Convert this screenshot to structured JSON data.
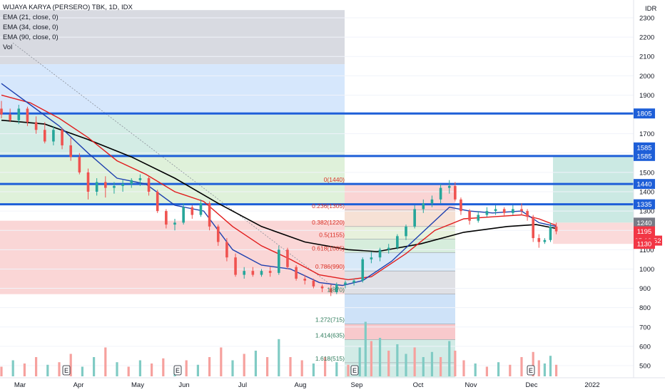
{
  "header": {
    "symbol": "WIJAYA KARYA (PERSERO) TBK, 1D, IDX",
    "indicators": [
      "EMA (21, close, 0)",
      "EMA (34, close, 0)",
      "EMA (90, close, 0)",
      "Vol"
    ]
  },
  "colors": {
    "up": "#26a69a",
    "down": "#ef5350",
    "vol_up": "#80cbc4",
    "vol_down": "#f6a19e",
    "ema21": "#1e40af",
    "ema34": "#e11d1d",
    "ema90": "#000000",
    "hline": "#1e5fd8",
    "tag_red": "#f23645",
    "tag_gray": "#787b86"
  },
  "chart_data": {
    "type": "candlestick",
    "currency_label": "IDR",
    "y_ticks": [
      500,
      600,
      700,
      800,
      900,
      1000,
      1100,
      1200,
      1300,
      1400,
      1500,
      1600,
      1700,
      1800,
      1900,
      2000,
      2100,
      2200,
      2300
    ],
    "y_range": [
      445,
      2340
    ],
    "x_labels": [
      "Mar",
      "Apr",
      "May",
      "Jun",
      "Jul",
      "Aug",
      "Sep",
      "Oct",
      "Nov",
      "Dec",
      "2022"
    ],
    "horizontal_levels": [
      {
        "label": "1805",
        "value": 1805
      },
      {
        "label": "1585",
        "value": 1585
      },
      {
        "label": "1440",
        "value": 1440
      },
      {
        "label": "1335",
        "value": 1335
      }
    ],
    "price_tags": [
      {
        "label": "1585",
        "value": 1585,
        "kind": "blue",
        "offset": -12
      },
      {
        "label": "1240",
        "value": 1240,
        "kind": "gray"
      },
      {
        "label": "1195",
        "value": 1195,
        "kind": "red"
      },
      {
        "label": "05:19:52",
        "value": 1195,
        "kind": "red",
        "offset": 13
      },
      {
        "label": "1130",
        "value": 1130,
        "kind": "red"
      }
    ],
    "fib_retracement": [
      {
        "label": "0(1440)",
        "value": 1440
      },
      {
        "label": "0.236(1305)",
        "value": 1305
      },
      {
        "label": "0.382(1220)",
        "value": 1220
      },
      {
        "label": "0.5(1155)",
        "value": 1155
      },
      {
        "label": "0.618(1085)",
        "value": 1085
      },
      {
        "label": "0.786(990)",
        "value": 990
      },
      {
        "label": "1(870)",
        "value": 870
      },
      {
        "label": "1.272(715)",
        "value": 715
      },
      {
        "label": "1.414(635)",
        "value": 635
      },
      {
        "label": "1.618(515)",
        "value": 515
      }
    ],
    "ohlc_points": [
      {
        "i": 0,
        "o": 1830,
        "h": 1870,
        "l": 1780,
        "c": 1800
      },
      {
        "i": 3,
        "o": 1800,
        "h": 1830,
        "l": 1760,
        "c": 1770
      },
      {
        "i": 6,
        "o": 1770,
        "h": 1850,
        "l": 1750,
        "c": 1830
      },
      {
        "i": 9,
        "o": 1830,
        "h": 1840,
        "l": 1740,
        "c": 1760
      },
      {
        "i": 12,
        "o": 1760,
        "h": 1790,
        "l": 1700,
        "c": 1720
      },
      {
        "i": 15,
        "o": 1720,
        "h": 1760,
        "l": 1650,
        "c": 1660
      },
      {
        "i": 18,
        "o": 1660,
        "h": 1740,
        "l": 1640,
        "c": 1720
      },
      {
        "i": 21,
        "o": 1720,
        "h": 1730,
        "l": 1620,
        "c": 1640
      },
      {
        "i": 24,
        "o": 1640,
        "h": 1680,
        "l": 1560,
        "c": 1580
      },
      {
        "i": 27,
        "o": 1580,
        "h": 1600,
        "l": 1490,
        "c": 1500
      },
      {
        "i": 30,
        "o": 1500,
        "h": 1520,
        "l": 1360,
        "c": 1400
      },
      {
        "i": 33,
        "o": 1400,
        "h": 1470,
        "l": 1380,
        "c": 1450
      },
      {
        "i": 36,
        "o": 1450,
        "h": 1480,
        "l": 1370,
        "c": 1420
      },
      {
        "i": 39,
        "o": 1420,
        "h": 1450,
        "l": 1390,
        "c": 1430
      },
      {
        "i": 42,
        "o": 1430,
        "h": 1460,
        "l": 1400,
        "c": 1440
      },
      {
        "i": 45,
        "o": 1440,
        "h": 1470,
        "l": 1420,
        "c": 1460
      },
      {
        "i": 48,
        "o": 1460,
        "h": 1490,
        "l": 1430,
        "c": 1470
      },
      {
        "i": 51,
        "o": 1470,
        "h": 1480,
        "l": 1380,
        "c": 1400
      },
      {
        "i": 54,
        "o": 1400,
        "h": 1410,
        "l": 1290,
        "c": 1300
      },
      {
        "i": 57,
        "o": 1300,
        "h": 1310,
        "l": 1210,
        "c": 1230
      },
      {
        "i": 60,
        "o": 1230,
        "h": 1260,
        "l": 1200,
        "c": 1240
      },
      {
        "i": 63,
        "o": 1240,
        "h": 1340,
        "l": 1230,
        "c": 1320
      },
      {
        "i": 66,
        "o": 1320,
        "h": 1330,
        "l": 1260,
        "c": 1280
      },
      {
        "i": 69,
        "o": 1280,
        "h": 1360,
        "l": 1270,
        "c": 1340
      },
      {
        "i": 72,
        "o": 1340,
        "h": 1350,
        "l": 1200,
        "c": 1220
      },
      {
        "i": 75,
        "o": 1220,
        "h": 1230,
        "l": 1120,
        "c": 1140
      },
      {
        "i": 78,
        "o": 1140,
        "h": 1160,
        "l": 1040,
        "c": 1060
      },
      {
        "i": 81,
        "o": 1060,
        "h": 1080,
        "l": 960,
        "c": 970
      },
      {
        "i": 84,
        "o": 970,
        "h": 1010,
        "l": 950,
        "c": 990
      },
      {
        "i": 87,
        "o": 990,
        "h": 1010,
        "l": 960,
        "c": 970
      },
      {
        "i": 90,
        "o": 970,
        "h": 1000,
        "l": 960,
        "c": 990
      },
      {
        "i": 93,
        "o": 990,
        "h": 1010,
        "l": 960,
        "c": 980
      },
      {
        "i": 96,
        "o": 980,
        "h": 1120,
        "l": 970,
        "c": 1100
      },
      {
        "i": 99,
        "o": 1100,
        "h": 1110,
        "l": 1000,
        "c": 1010
      },
      {
        "i": 102,
        "o": 1010,
        "h": 1020,
        "l": 940,
        "c": 950
      },
      {
        "i": 105,
        "o": 950,
        "h": 970,
        "l": 920,
        "c": 940
      },
      {
        "i": 108,
        "o": 940,
        "h": 950,
        "l": 900,
        "c": 910
      },
      {
        "i": 111,
        "o": 910,
        "h": 920,
        "l": 880,
        "c": 900
      },
      {
        "i": 114,
        "o": 900,
        "h": 920,
        "l": 860,
        "c": 880
      },
      {
        "i": 116,
        "o": 880,
        "h": 930,
        "l": 870,
        "c": 920
      },
      {
        "i": 119,
        "o": 920,
        "h": 940,
        "l": 900,
        "c": 930
      },
      {
        "i": 122,
        "o": 930,
        "h": 950,
        "l": 915,
        "c": 940
      },
      {
        "i": 125,
        "o": 940,
        "h": 1060,
        "l": 930,
        "c": 1050
      },
      {
        "i": 128,
        "o": 1050,
        "h": 1090,
        "l": 1030,
        "c": 1060
      },
      {
        "i": 131,
        "o": 1060,
        "h": 1110,
        "l": 1040,
        "c": 1100
      },
      {
        "i": 134,
        "o": 1100,
        "h": 1130,
        "l": 1080,
        "c": 1110
      },
      {
        "i": 137,
        "o": 1110,
        "h": 1180,
        "l": 1100,
        "c": 1170
      },
      {
        "i": 140,
        "o": 1170,
        "h": 1230,
        "l": 1150,
        "c": 1220
      },
      {
        "i": 143,
        "o": 1220,
        "h": 1330,
        "l": 1210,
        "c": 1310
      },
      {
        "i": 146,
        "o": 1310,
        "h": 1360,
        "l": 1290,
        "c": 1340
      },
      {
        "i": 149,
        "o": 1340,
        "h": 1380,
        "l": 1320,
        "c": 1360
      },
      {
        "i": 152,
        "o": 1360,
        "h": 1440,
        "l": 1340,
        "c": 1420
      },
      {
        "i": 155,
        "o": 1420,
        "h": 1460,
        "l": 1390,
        "c": 1430
      },
      {
        "i": 157,
        "o": 1430,
        "h": 1450,
        "l": 1350,
        "c": 1360
      },
      {
        "i": 159,
        "o": 1360,
        "h": 1370,
        "l": 1280,
        "c": 1300
      },
      {
        "i": 162,
        "o": 1300,
        "h": 1310,
        "l": 1230,
        "c": 1250
      },
      {
        "i": 165,
        "o": 1250,
        "h": 1300,
        "l": 1240,
        "c": 1280
      },
      {
        "i": 168,
        "o": 1280,
        "h": 1320,
        "l": 1270,
        "c": 1300
      },
      {
        "i": 171,
        "o": 1300,
        "h": 1330,
        "l": 1280,
        "c": 1310
      },
      {
        "i": 174,
        "o": 1310,
        "h": 1320,
        "l": 1270,
        "c": 1290
      },
      {
        "i": 177,
        "o": 1290,
        "h": 1330,
        "l": 1280,
        "c": 1310
      },
      {
        "i": 180,
        "o": 1310,
        "h": 1340,
        "l": 1280,
        "c": 1300
      },
      {
        "i": 182,
        "o": 1300,
        "h": 1310,
        "l": 1250,
        "c": 1270
      },
      {
        "i": 184,
        "o": 1270,
        "h": 1280,
        "l": 1140,
        "c": 1160
      },
      {
        "i": 186,
        "o": 1160,
        "h": 1180,
        "l": 1110,
        "c": 1140
      },
      {
        "i": 188,
        "o": 1140,
        "h": 1160,
        "l": 1130,
        "c": 1150
      },
      {
        "i": 190,
        "o": 1150,
        "h": 1240,
        "l": 1140,
        "c": 1220
      },
      {
        "i": 192,
        "o": 1220,
        "h": 1240,
        "l": 1180,
        "c": 1195
      }
    ],
    "ema21": [
      [
        0,
        1960
      ],
      [
        10,
        1850
      ],
      [
        20,
        1740
      ],
      [
        30,
        1600
      ],
      [
        40,
        1470
      ],
      [
        50,
        1440
      ],
      [
        60,
        1330
      ],
      [
        70,
        1300
      ],
      [
        80,
        1100
      ],
      [
        90,
        1020
      ],
      [
        100,
        1000
      ],
      [
        110,
        930
      ],
      [
        118,
        915
      ],
      [
        125,
        940
      ],
      [
        135,
        1040
      ],
      [
        145,
        1180
      ],
      [
        155,
        1320
      ],
      [
        162,
        1300
      ],
      [
        170,
        1290
      ],
      [
        180,
        1300
      ],
      [
        186,
        1240
      ],
      [
        192,
        1220
      ]
    ],
    "ema34": [
      [
        0,
        1900
      ],
      [
        10,
        1860
      ],
      [
        20,
        1780
      ],
      [
        30,
        1680
      ],
      [
        40,
        1560
      ],
      [
        50,
        1490
      ],
      [
        60,
        1400
      ],
      [
        70,
        1350
      ],
      [
        80,
        1220
      ],
      [
        90,
        1120
      ],
      [
        100,
        1050
      ],
      [
        110,
        970
      ],
      [
        120,
        945
      ],
      [
        128,
        960
      ],
      [
        140,
        1080
      ],
      [
        150,
        1200
      ],
      [
        160,
        1260
      ],
      [
        170,
        1270
      ],
      [
        180,
        1280
      ],
      [
        186,
        1260
      ],
      [
        192,
        1225
      ]
    ],
    "ema90": [
      [
        0,
        1770
      ],
      [
        15,
        1750
      ],
      [
        30,
        1670
      ],
      [
        45,
        1580
      ],
      [
        60,
        1470
      ],
      [
        75,
        1340
      ],
      [
        90,
        1220
      ],
      [
        105,
        1140
      ],
      [
        120,
        1100
      ],
      [
        130,
        1090
      ],
      [
        145,
        1130
      ],
      [
        160,
        1190
      ],
      [
        175,
        1220
      ],
      [
        185,
        1230
      ],
      [
        192,
        1210
      ]
    ],
    "volume_ticks": [
      {
        "i": 0,
        "v": 0.15,
        "up": false
      },
      {
        "i": 4,
        "v": 0.25,
        "up": true
      },
      {
        "i": 8,
        "v": 0.2,
        "up": false
      },
      {
        "i": 12,
        "v": 0.3,
        "up": false
      },
      {
        "i": 16,
        "v": 0.18,
        "up": true
      },
      {
        "i": 20,
        "v": 0.22,
        "up": false
      },
      {
        "i": 24,
        "v": 0.35,
        "up": false
      },
      {
        "i": 28,
        "v": 0.15,
        "up": true
      },
      {
        "i": 32,
        "v": 0.3,
        "up": true
      },
      {
        "i": 36,
        "v": 0.45,
        "up": false
      },
      {
        "i": 40,
        "v": 0.22,
        "up": true
      },
      {
        "i": 44,
        "v": 0.15,
        "up": false
      },
      {
        "i": 48,
        "v": 0.25,
        "up": true
      },
      {
        "i": 52,
        "v": 0.2,
        "up": false
      },
      {
        "i": 56,
        "v": 0.28,
        "up": false
      },
      {
        "i": 60,
        "v": 0.12,
        "up": true
      },
      {
        "i": 64,
        "v": 0.25,
        "up": false
      },
      {
        "i": 68,
        "v": 0.18,
        "up": true
      },
      {
        "i": 72,
        "v": 0.3,
        "up": false
      },
      {
        "i": 76,
        "v": 0.45,
        "up": false
      },
      {
        "i": 80,
        "v": 0.25,
        "up": true
      },
      {
        "i": 84,
        "v": 0.35,
        "up": false
      },
      {
        "i": 88,
        "v": 0.4,
        "up": true
      },
      {
        "i": 92,
        "v": 0.3,
        "up": false
      },
      {
        "i": 96,
        "v": 0.58,
        "up": true
      },
      {
        "i": 100,
        "v": 0.3,
        "up": false
      },
      {
        "i": 104,
        "v": 0.25,
        "up": false
      },
      {
        "i": 108,
        "v": 0.2,
        "up": true
      },
      {
        "i": 112,
        "v": 0.3,
        "up": false
      },
      {
        "i": 116,
        "v": 0.22,
        "up": true
      },
      {
        "i": 120,
        "v": 0.18,
        "up": false
      },
      {
        "i": 124,
        "v": 0.45,
        "up": true
      },
      {
        "i": 126,
        "v": 0.85,
        "up": true
      },
      {
        "i": 128,
        "v": 0.55,
        "up": false
      },
      {
        "i": 131,
        "v": 0.6,
        "up": true
      },
      {
        "i": 134,
        "v": 0.4,
        "up": false
      },
      {
        "i": 137,
        "v": 0.5,
        "up": true
      },
      {
        "i": 140,
        "v": 0.35,
        "up": true
      },
      {
        "i": 143,
        "v": 0.45,
        "up": false
      },
      {
        "i": 146,
        "v": 0.3,
        "up": true
      },
      {
        "i": 149,
        "v": 0.38,
        "up": true
      },
      {
        "i": 152,
        "v": 0.3,
        "up": false
      },
      {
        "i": 155,
        "v": 0.55,
        "up": true
      },
      {
        "i": 157,
        "v": 0.4,
        "up": false
      },
      {
        "i": 160,
        "v": 0.25,
        "up": false
      },
      {
        "i": 164,
        "v": 0.2,
        "up": true
      },
      {
        "i": 168,
        "v": 0.15,
        "up": false
      },
      {
        "i": 172,
        "v": 0.22,
        "up": true
      },
      {
        "i": 176,
        "v": 0.18,
        "up": false
      },
      {
        "i": 180,
        "v": 0.3,
        "up": false
      },
      {
        "i": 184,
        "v": 0.38,
        "up": false
      },
      {
        "i": 186,
        "v": 0.25,
        "up": false
      },
      {
        "i": 188,
        "v": 0.2,
        "up": true
      },
      {
        "i": 190,
        "v": 0.32,
        "up": true
      },
      {
        "i": 192,
        "v": 0.18,
        "up": false
      }
    ],
    "event_markers": [
      "E",
      "E",
      "E",
      "E"
    ]
  }
}
